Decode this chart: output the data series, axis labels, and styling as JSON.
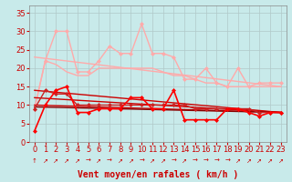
{
  "background_color": "#c8eaea",
  "grid_color": "#b0c8c8",
  "xlabel": "Vent moyen/en rafales ( km/h )",
  "xlabel_color": "#cc0000",
  "xlabel_fontsize": 7,
  "tick_color": "#cc0000",
  "tick_fontsize": 6,
  "ylim": [
    0,
    37
  ],
  "xlim": [
    -0.5,
    23.5
  ],
  "yticks": [
    0,
    5,
    10,
    15,
    20,
    25,
    30,
    35
  ],
  "xticks": [
    0,
    1,
    2,
    3,
    4,
    5,
    6,
    7,
    8,
    9,
    10,
    11,
    12,
    13,
    14,
    15,
    16,
    17,
    18,
    19,
    20,
    21,
    22,
    23
  ],
  "lines": [
    {
      "comment": "light pink jagged line - rafales high",
      "x": [
        0,
        1,
        2,
        3,
        4,
        5,
        6,
        7,
        8,
        9,
        10,
        11,
        12,
        13,
        14,
        15,
        16,
        17,
        18,
        19,
        20,
        21,
        22,
        23
      ],
      "y": [
        9,
        22,
        30,
        30,
        19,
        19,
        22,
        26,
        24,
        24,
        32,
        24,
        24,
        23,
        17,
        17,
        20,
        16,
        15,
        20,
        15,
        16,
        16,
        16
      ],
      "color": "#ffaaaa",
      "lw": 1.0,
      "marker": "D",
      "ms": 2.0,
      "zorder": 3
    },
    {
      "comment": "medium pink smoother line",
      "x": [
        0,
        1,
        2,
        3,
        4,
        5,
        6,
        7,
        8,
        9,
        10,
        11,
        12,
        13,
        14,
        15,
        16,
        17,
        18,
        19,
        20,
        21,
        22,
        23
      ],
      "y": [
        9,
        22,
        21,
        19,
        18,
        18,
        20,
        20,
        20,
        20,
        20,
        20,
        19,
        18,
        18,
        17,
        16,
        16,
        15,
        15,
        15,
        15,
        15,
        15
      ],
      "color": "#ffaaaa",
      "lw": 1.0,
      "marker": null,
      "ms": 0,
      "zorder": 2
    },
    {
      "comment": "straight declining pink line top",
      "x": [
        0,
        23
      ],
      "y": [
        23,
        15
      ],
      "color": "#ffaaaa",
      "lw": 1.0,
      "marker": null,
      "ms": 0,
      "zorder": 2
    },
    {
      "comment": "red jagged line - main wind",
      "x": [
        0,
        1,
        2,
        3,
        4,
        5,
        6,
        7,
        8,
        9,
        10,
        11,
        12,
        13,
        14,
        15,
        16,
        17,
        18,
        19,
        20,
        21,
        22,
        23
      ],
      "y": [
        3,
        10,
        14,
        15,
        8,
        8,
        9,
        9,
        9,
        12,
        12,
        9,
        9,
        14,
        6,
        6,
        6,
        6,
        9,
        9,
        8,
        7,
        8,
        8
      ],
      "color": "#ff0000",
      "lw": 1.2,
      "marker": "D",
      "ms": 2.0,
      "zorder": 5
    },
    {
      "comment": "dark red straight line declining 1",
      "x": [
        0,
        23
      ],
      "y": [
        14,
        8
      ],
      "color": "#cc0000",
      "lw": 1.0,
      "marker": null,
      "ms": 0,
      "zorder": 3
    },
    {
      "comment": "dark red straight line declining 2",
      "x": [
        0,
        23
      ],
      "y": [
        12,
        8
      ],
      "color": "#cc0000",
      "lw": 1.0,
      "marker": null,
      "ms": 0,
      "zorder": 3
    },
    {
      "comment": "dark red straight line declining 3",
      "x": [
        0,
        23
      ],
      "y": [
        10,
        8
      ],
      "color": "#cc0000",
      "lw": 1.0,
      "marker": null,
      "ms": 0,
      "zorder": 3
    },
    {
      "comment": "dark red straight line near flat",
      "x": [
        0,
        23
      ],
      "y": [
        9.5,
        8
      ],
      "color": "#880000",
      "lw": 1.0,
      "marker": null,
      "ms": 0,
      "zorder": 3
    },
    {
      "comment": "dark red line with markers declining",
      "x": [
        0,
        1,
        2,
        3,
        4,
        5,
        6,
        7,
        8,
        9,
        10,
        11,
        12,
        13,
        14,
        15,
        16,
        17,
        18,
        19,
        20,
        21,
        22,
        23
      ],
      "y": [
        9,
        14,
        13,
        13,
        10,
        10,
        10,
        10,
        10,
        10,
        10,
        10,
        10,
        10,
        10,
        9,
        9,
        9,
        9,
        9,
        9,
        8,
        8,
        8
      ],
      "color": "#cc2222",
      "lw": 1.0,
      "marker": "D",
      "ms": 2.0,
      "zorder": 4
    }
  ],
  "arrows": [
    "↑",
    "↗",
    "↗",
    "↗",
    "↗",
    "→",
    "↗",
    "→",
    "↗",
    "↗",
    "→",
    "↗",
    "↗",
    "→",
    "↗",
    "→",
    "→",
    "→",
    "→",
    "↗",
    "↗",
    "↗",
    "↗",
    "↗"
  ]
}
